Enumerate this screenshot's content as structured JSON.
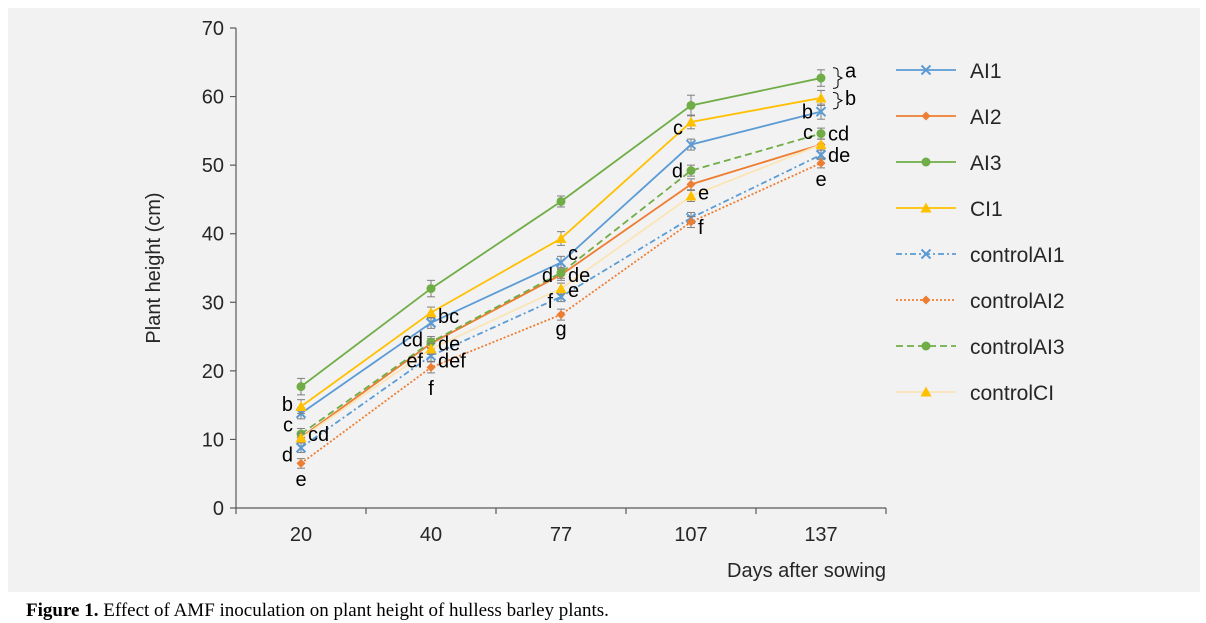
{
  "caption": {
    "label": "Figure 1.",
    "text": " Effect of AMF inoculation on plant height of hulless barley plants."
  },
  "chart_data": {
    "type": "line",
    "title": "",
    "xlabel": "Days after sowing",
    "ylabel": "Plant height (cm)",
    "categories": [
      "20",
      "40",
      "77",
      "107",
      "137"
    ],
    "ylim": [
      0,
      70
    ],
    "yticks": [
      0,
      10,
      20,
      30,
      40,
      50,
      60,
      70
    ],
    "grid": false,
    "legend_position": "right",
    "series": [
      {
        "name": "AI1",
        "values": [
          13.8,
          27.0,
          35.8,
          53.0,
          57.8
        ],
        "color": "#5b9bd5",
        "dash": "",
        "marker": "x",
        "errors": [
          0.8,
          0.8,
          0.9,
          0.8,
          1.1
        ]
      },
      {
        "name": "AI2",
        "values": [
          10.3,
          24.0,
          34.0,
          47.2,
          53.0
        ],
        "color": "#ed7d31",
        "dash": "",
        "marker": "diamond",
        "errors": [
          0.7,
          0.7,
          0.8,
          0.8,
          0.8
        ]
      },
      {
        "name": "AI3",
        "values": [
          17.7,
          32.0,
          44.7,
          58.7,
          62.7
        ],
        "color": "#70ad47",
        "dash": "",
        "marker": "circle",
        "errors": [
          1.2,
          1.2,
          0.8,
          1.5,
          1.2
        ]
      },
      {
        "name": "CI1",
        "values": [
          14.8,
          28.5,
          39.3,
          56.3,
          59.8
        ],
        "color": "#ffc000",
        "dash": "",
        "marker": "triangle",
        "errors": [
          1.0,
          0.8,
          1.0,
          1.0,
          1.1
        ]
      },
      {
        "name": "controlAI1",
        "values": [
          8.8,
          22.2,
          30.8,
          42.3,
          51.5
        ],
        "color": "#5b9bd5",
        "dash": "6,3,2,3",
        "marker": "x",
        "errors": [
          0.7,
          0.8,
          0.7,
          0.8,
          0.7
        ]
      },
      {
        "name": "controlAI2",
        "values": [
          6.5,
          20.5,
          28.2,
          41.7,
          50.3
        ],
        "color": "#ed7d31",
        "dash": "2,2",
        "marker": "diamond",
        "errors": [
          0.7,
          0.8,
          0.8,
          0.8,
          0.7
        ]
      },
      {
        "name": "controlAI3",
        "values": [
          10.8,
          24.2,
          34.3,
          49.2,
          54.6
        ],
        "color": "#70ad47",
        "dash": "7,4",
        "marker": "circle",
        "errors": [
          0.8,
          0.8,
          0.8,
          0.8,
          0.8
        ]
      },
      {
        "name": "controlCI",
        "values": [
          10.2,
          23.2,
          32.0,
          45.5,
          53.0
        ],
        "color": "#ffc000",
        "dash": "",
        "marker": "triangle",
        "errors": [
          0.7,
          0.8,
          0.8,
          0.8,
          0.8
        ],
        "line_color": "#fbe5b7"
      }
    ],
    "annotations": [
      {
        "text": "b",
        "x": "20",
        "y": 15.2,
        "side": "left"
      },
      {
        "text": "c",
        "x": "20",
        "y": 12.2,
        "side": "left"
      },
      {
        "text": "cd",
        "x": "20",
        "y": 10.8,
        "side": "right"
      },
      {
        "text": "d",
        "x": "20",
        "y": 7.8,
        "side": "left"
      },
      {
        "text": "e",
        "x": "20",
        "y": 4.2,
        "side": "below"
      },
      {
        "text": "bc",
        "x": "40",
        "y": 28.0,
        "side": "right"
      },
      {
        "text": "cd",
        "x": "40",
        "y": 24.6,
        "side": "left"
      },
      {
        "text": "de",
        "x": "40",
        "y": 24.0,
        "side": "right"
      },
      {
        "text": "ef",
        "x": "40",
        "y": 21.5,
        "side": "left"
      },
      {
        "text": "def",
        "x": "40",
        "y": 21.5,
        "side": "right"
      },
      {
        "text": "f",
        "x": "40",
        "y": 17.5,
        "side": "below"
      },
      {
        "text": "c",
        "x": "77",
        "y": 37.2,
        "side": "right"
      },
      {
        "text": "d",
        "x": "77",
        "y": 34.0,
        "side": "left"
      },
      {
        "text": "de",
        "x": "77",
        "y": 34.0,
        "side": "right"
      },
      {
        "text": "e",
        "x": "77",
        "y": 31.8,
        "side": "right"
      },
      {
        "text": "f",
        "x": "77",
        "y": 30.2,
        "side": "left"
      },
      {
        "text": "g",
        "x": "77",
        "y": 26.2,
        "side": "below"
      },
      {
        "text": "c",
        "x": "107",
        "y": 55.5,
        "side": "left"
      },
      {
        "text": "d",
        "x": "107",
        "y": 49.2,
        "side": "left"
      },
      {
        "text": "e",
        "x": "107",
        "y": 46.0,
        "side": "right"
      },
      {
        "text": "f",
        "x": "107",
        "y": 41.0,
        "side": "right"
      },
      {
        "text": "b",
        "x": "137",
        "y": 57.8,
        "side": "left"
      },
      {
        "text": "c",
        "x": "137",
        "y": 54.8,
        "side": "left"
      },
      {
        "text": "cd",
        "x": "137",
        "y": 54.6,
        "side": "right"
      },
      {
        "text": "de",
        "x": "137",
        "y": 51.5,
        "side": "right"
      },
      {
        "text": "e",
        "x": "137",
        "y": 48.0,
        "side": "below"
      },
      {
        "text": "a",
        "x": "137",
        "y": 63.8,
        "side": "brace"
      },
      {
        "text": "b",
        "x": "137",
        "y": 59.8,
        "side": "brace"
      }
    ]
  }
}
